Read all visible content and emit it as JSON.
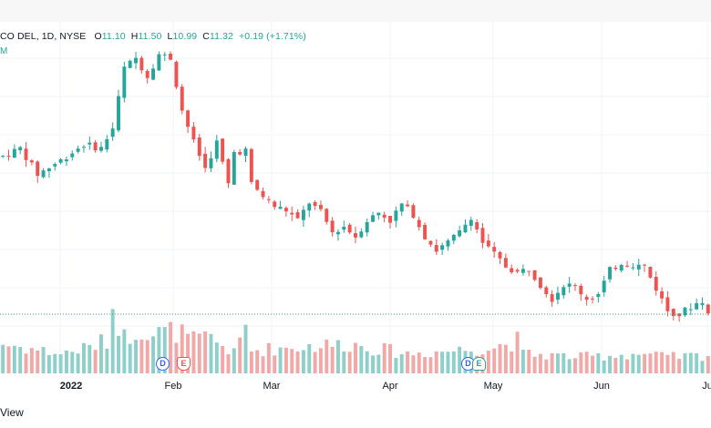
{
  "legend": {
    "symbol": "CO DEL, 1D, NYSE",
    "o_label": "O",
    "o_value": "11.10",
    "h_label": "H",
    "h_value": "11.50",
    "l_label": "L",
    "l_value": "10.99",
    "c_label": "C",
    "c_value": "11.32",
    "change": "+0.19 (+1.71%)",
    "sub": "M"
  },
  "x_axis": {
    "year": "2022",
    "feb": "Feb",
    "mar": "Mar",
    "apr": "Apr",
    "may": "May",
    "jun": "Jun",
    "jul": "Ju"
  },
  "events": {
    "dividend_1": "D",
    "earnings_1": "E",
    "dividend_2": "D",
    "earnings_2": "E"
  },
  "footer": {
    "text": "View"
  },
  "colors": {
    "up": "#26a69a",
    "down": "#ef5350",
    "volume_up": "#8fcfc9",
    "volume_down": "#f2a8a6",
    "grid": "#f0f3fa",
    "dotted_line": "#26a69a"
  },
  "chart_data": {
    "type": "candlestick",
    "title": "CO DEL, 1D, NYSE",
    "last": {
      "open": 11.1,
      "high": 11.5,
      "low": 10.99,
      "close": 11.32,
      "change": 0.19,
      "change_pct": 1.71
    },
    "x_tick_labels": [
      "2022",
      "Feb",
      "Mar",
      "Apr",
      "May",
      "Jun",
      "Ju"
    ],
    "price_path": [
      [
        0,
        19.2
      ],
      [
        3,
        19.6
      ],
      [
        6,
        18.3
      ],
      [
        10,
        19.0
      ],
      [
        14,
        19.8
      ],
      [
        17,
        19.6
      ],
      [
        19,
        20.6
      ],
      [
        21,
        23.6
      ],
      [
        23,
        24.1
      ],
      [
        25,
        23.2
      ],
      [
        27,
        24.3
      ],
      [
        29,
        24.1
      ],
      [
        31,
        21.5
      ],
      [
        33,
        19.9
      ],
      [
        35,
        18.6
      ],
      [
        37,
        19.9
      ],
      [
        39,
        17.8
      ],
      [
        40,
        19.4
      ],
      [
        42,
        19.5
      ],
      [
        43,
        17.8
      ],
      [
        45,
        17.2
      ],
      [
        47,
        16.7
      ],
      [
        49,
        16.5
      ],
      [
        51,
        16.0
      ],
      [
        53,
        16.9
      ],
      [
        55,
        16.4
      ],
      [
        57,
        15.4
      ],
      [
        59,
        15.7
      ],
      [
        61,
        15.2
      ],
      [
        63,
        16.0
      ],
      [
        65,
        16.4
      ],
      [
        67,
        16.0
      ],
      [
        69,
        16.8
      ],
      [
        71,
        16.3
      ],
      [
        73,
        15.2
      ],
      [
        75,
        14.5
      ],
      [
        77,
        14.9
      ],
      [
        79,
        15.4
      ],
      [
        81,
        16.2
      ],
      [
        83,
        14.9
      ],
      [
        85,
        14.3
      ],
      [
        87,
        13.7
      ],
      [
        89,
        13.4
      ],
      [
        91,
        13.6
      ],
      [
        93,
        12.8
      ],
      [
        95,
        12.1
      ],
      [
        97,
        12.8
      ],
      [
        99,
        12.7
      ],
      [
        101,
        12.1
      ],
      [
        103,
        12.3
      ],
      [
        105,
        13.5
      ],
      [
        107,
        13.9
      ],
      [
        109,
        13.8
      ],
      [
        111,
        13.7
      ],
      [
        113,
        12.6
      ],
      [
        115,
        11.5
      ],
      [
        117,
        11.3
      ],
      [
        119,
        11.7
      ],
      [
        121,
        12.0
      ],
      [
        122,
        11.32
      ]
    ],
    "volume_path": [
      [
        0,
        0.9
      ],
      [
        5,
        0.75
      ],
      [
        10,
        0.6
      ],
      [
        15,
        0.8
      ],
      [
        18,
        1.0
      ],
      [
        19,
        2.0
      ],
      [
        20,
        1.6
      ],
      [
        21,
        1.1
      ],
      [
        24,
        1.4
      ],
      [
        26,
        1.2
      ],
      [
        30,
        1.3
      ],
      [
        33,
        1.0
      ],
      [
        36,
        1.1
      ],
      [
        40,
        0.6
      ],
      [
        42,
        1.4
      ],
      [
        43,
        0.7
      ],
      [
        50,
        0.8
      ],
      [
        60,
        0.9
      ],
      [
        70,
        0.6
      ],
      [
        78,
        0.7
      ],
      [
        85,
        0.8
      ],
      [
        89,
        1.0
      ],
      [
        90,
        0.6
      ],
      [
        100,
        0.5
      ],
      [
        110,
        0.6
      ],
      [
        115,
        0.5
      ],
      [
        122,
        0.55
      ]
    ],
    "volume_max": 2.0,
    "price_range": [
      10,
      25
    ],
    "bars": 123
  }
}
